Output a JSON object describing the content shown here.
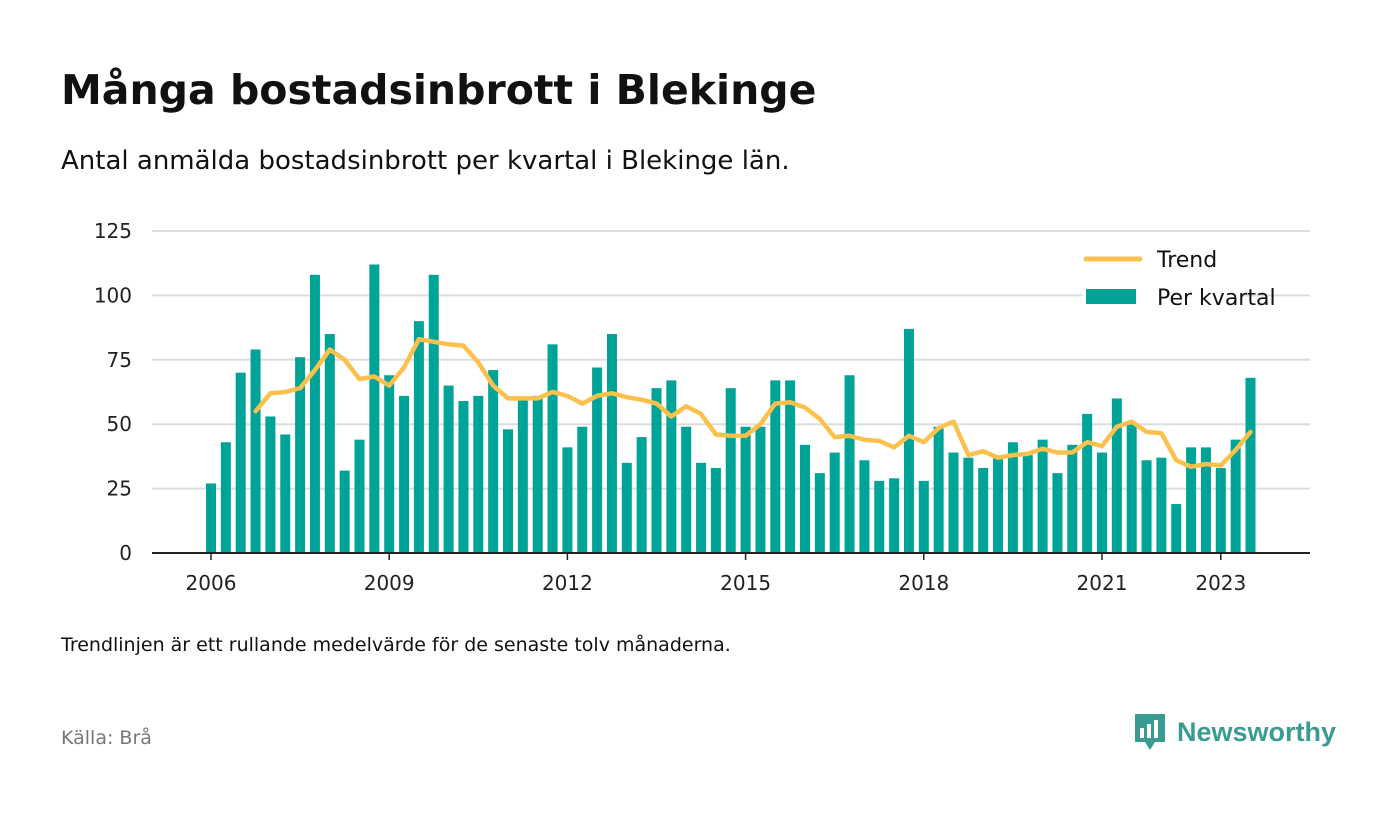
{
  "header": {
    "title": "Många bostadsinbrott i Blekinge",
    "subtitle": "Antal anmälda bostadsinbrott per kvartal i Blekinge län."
  },
  "footer": {
    "note": "Trendlinjen är ett rullande medelvärde för de senaste tolv månaderna.",
    "source": "Källa: Brå",
    "brand": "Newsworthy"
  },
  "colors": {
    "bar": "#00a398",
    "trend": "#fbc14c",
    "grid": "#dddddd",
    "axis": "#222222",
    "brand": "#3a9b93"
  },
  "chart_data": {
    "type": "bar",
    "x_start": "2006 Q1",
    "x_step": "quarter",
    "xticks": [
      "2006",
      "2009",
      "2012",
      "2015",
      "2018",
      "2021",
      "2023"
    ],
    "yticks": [
      0,
      25,
      50,
      75,
      100,
      125
    ],
    "ylim": [
      0,
      125
    ],
    "grid": true,
    "legend_position": "top-right",
    "series": [
      {
        "name": "Per kvartal",
        "kind": "bar",
        "values": [
          27,
          43,
          70,
          79,
          53,
          46,
          76,
          108,
          85,
          32,
          44,
          112,
          69,
          61,
          90,
          108,
          65,
          59,
          61,
          71,
          48,
          60,
          61,
          81,
          41,
          49,
          72,
          85,
          35,
          45,
          64,
          67,
          49,
          35,
          33,
          64,
          49,
          49,
          67,
          67,
          42,
          31,
          39,
          69,
          36,
          28,
          29,
          87,
          28,
          49,
          39,
          37,
          33,
          37,
          43,
          38,
          44,
          31,
          42,
          54,
          39,
          60,
          50,
          36,
          37,
          19,
          41,
          41,
          33,
          44,
          68
        ]
      },
      {
        "name": "Trend",
        "kind": "line",
        "values": [
          null,
          null,
          null,
          55,
          62,
          62.5,
          64,
          71,
          79,
          75,
          67.5,
          68.5,
          65,
          72,
          83,
          82,
          81,
          80.5,
          74,
          65,
          60,
          60,
          60,
          62.5,
          61,
          58,
          61,
          62,
          60.5,
          59.5,
          58,
          53,
          57,
          54,
          46,
          45.5,
          45.5,
          50,
          58,
          58.5,
          56.5,
          52,
          45,
          45.5,
          44,
          43.5,
          41,
          45.5,
          43,
          48.5,
          51,
          38,
          39.5,
          37,
          38,
          38.5,
          40.5,
          39,
          39,
          43,
          41.5,
          49,
          51,
          47,
          46.5,
          36,
          33.5,
          34.5,
          34,
          40,
          47
        ]
      }
    ]
  }
}
